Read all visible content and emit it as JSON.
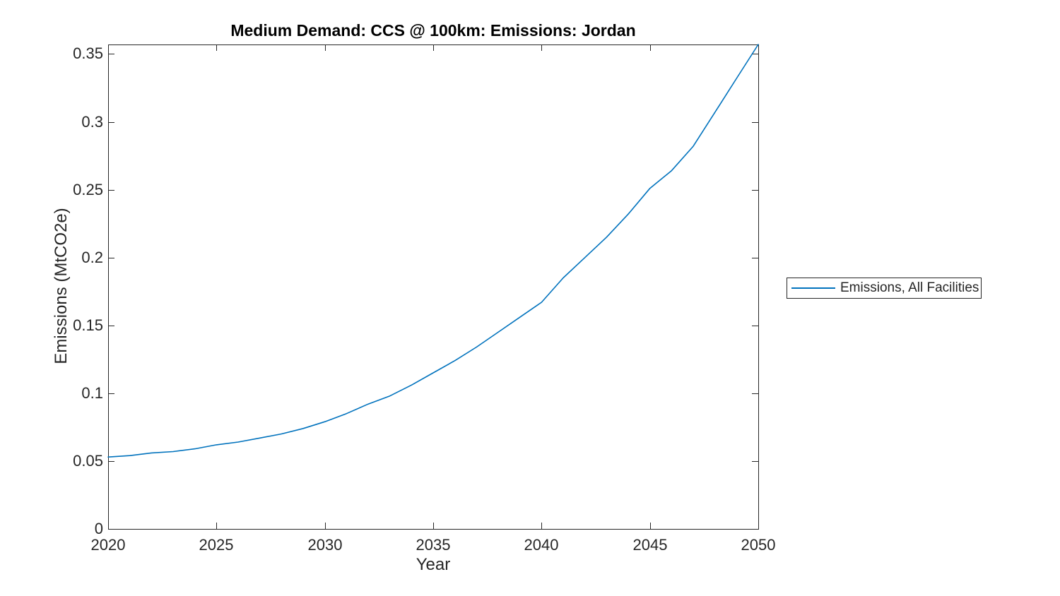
{
  "figure": {
    "background": "#ffffff",
    "axis_color": "#262626",
    "text_color": "#262626",
    "title_color": "#000000"
  },
  "chart_data": {
    "type": "line",
    "title": "Medium Demand: CCS @ 100km: Emissions: Jordan",
    "xlabel": "Year",
    "ylabel": "Emissions (MtCO2e)",
    "xlim": [
      2020,
      2050
    ],
    "ylim": [
      0,
      0.357
    ],
    "xticks": [
      2020,
      2025,
      2030,
      2035,
      2040,
      2045,
      2050
    ],
    "xtick_labels": [
      "2020",
      "2025",
      "2030",
      "2035",
      "2040",
      "2045",
      "2050"
    ],
    "yticks": [
      0,
      0.05,
      0.1,
      0.15,
      0.2,
      0.25,
      0.3,
      0.35
    ],
    "ytick_labels": [
      "0",
      "0.05",
      "0.1",
      "0.15",
      "0.2",
      "0.25",
      "0.3",
      "0.35"
    ],
    "grid": false,
    "box": true,
    "legend_position": "outside-right",
    "x": [
      2020,
      2021,
      2022,
      2023,
      2024,
      2025,
      2026,
      2027,
      2028,
      2029,
      2030,
      2031,
      2032,
      2033,
      2034,
      2035,
      2036,
      2037,
      2038,
      2039,
      2040,
      2041,
      2042,
      2043,
      2044,
      2045,
      2046,
      2047,
      2048,
      2049,
      2050
    ],
    "series": [
      {
        "name": "Emissions, All Facilities",
        "color": "#0072BD",
        "values": [
          0.053,
          0.054,
          0.056,
          0.057,
          0.059,
          0.062,
          0.064,
          0.067,
          0.07,
          0.074,
          0.079,
          0.085,
          0.092,
          0.098,
          0.106,
          0.115,
          0.124,
          0.134,
          0.145,
          0.156,
          0.167,
          0.185,
          0.2,
          0.215,
          0.232,
          0.251,
          0.264,
          0.282,
          0.307,
          0.332,
          0.357
        ]
      }
    ]
  }
}
